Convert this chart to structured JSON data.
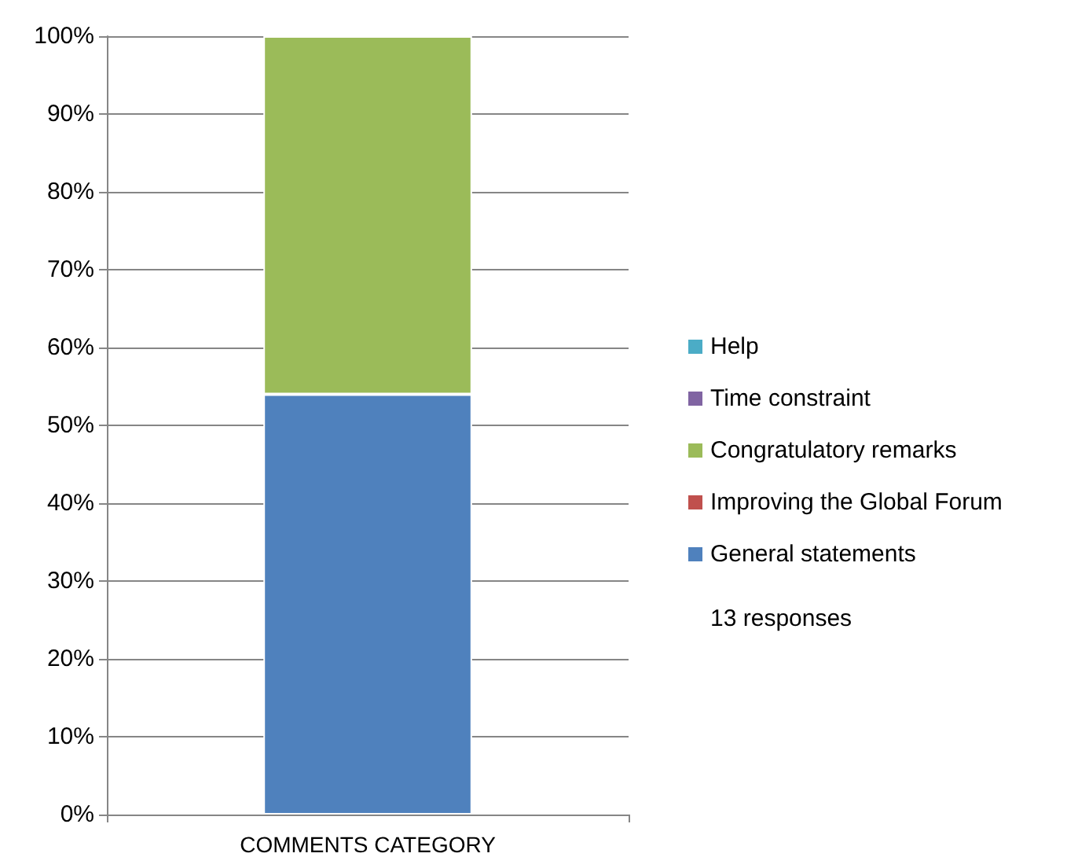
{
  "chart_data": {
    "type": "bar",
    "stacked": true,
    "categories": [
      "COMMENTS CATEGORY"
    ],
    "series": [
      {
        "name": "General statements",
        "color": "#4f81bd",
        "values": [
          54
        ]
      },
      {
        "name": "Improving the Global Forum",
        "color": "#c0504d",
        "values": [
          0
        ]
      },
      {
        "name": "Congratulatory remarks",
        "color": "#9bbb59",
        "values": [
          46
        ]
      },
      {
        "name": "Time constraint",
        "color": "#8064a2",
        "values": [
          0
        ]
      },
      {
        "name": "Help",
        "color": "#4bacc6",
        "values": [
          0
        ]
      }
    ],
    "ylim": [
      0,
      100
    ],
    "yticks": [
      {
        "value": 0,
        "label": "0%"
      },
      {
        "value": 10,
        "label": "10%"
      },
      {
        "value": 20,
        "label": "20%"
      },
      {
        "value": 30,
        "label": "30%"
      },
      {
        "value": 40,
        "label": "40%"
      },
      {
        "value": 50,
        "label": "50%"
      },
      {
        "value": 60,
        "label": "60%"
      },
      {
        "value": 70,
        "label": "70%"
      },
      {
        "value": 80,
        "label": "80%"
      },
      {
        "value": 90,
        "label": "90%"
      },
      {
        "value": 100,
        "label": "100%"
      }
    ],
    "grid": "y",
    "legend": "right",
    "annotations": [
      "13 responses"
    ]
  }
}
